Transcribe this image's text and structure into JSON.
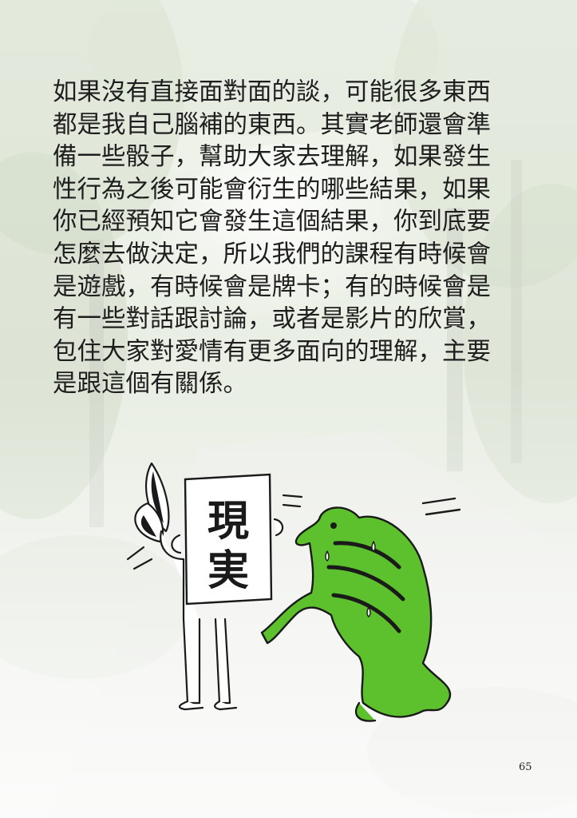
{
  "body_lines": [
    "如果沒有直接面對面的談，可能很多東西",
    "都是我自己腦補的東西。其實老師還會準",
    "備一些骰子，幫助大家去理解，如果發生",
    "性行為之後可能會衍生的哪些結果，如果",
    "你已經預知它會發生這個結果，你到底要",
    "怎麼去做決定，所以我們的課程有時候會",
    "是遊戲，有時候會是牌卡；有的時候會是",
    "有一些對話跟討論，或者是影片的欣賞，",
    "包住大家對愛情有更多面向的理解，主要",
    "是跟這個有關係。"
  ],
  "illustration": {
    "sign_text_1": "現",
    "sign_text_2": "実"
  },
  "page_number": "65",
  "colors": {
    "frog_green": "#5cc12c",
    "frog_dark": "#1a1a1a",
    "text": "#1e1e1e"
  }
}
